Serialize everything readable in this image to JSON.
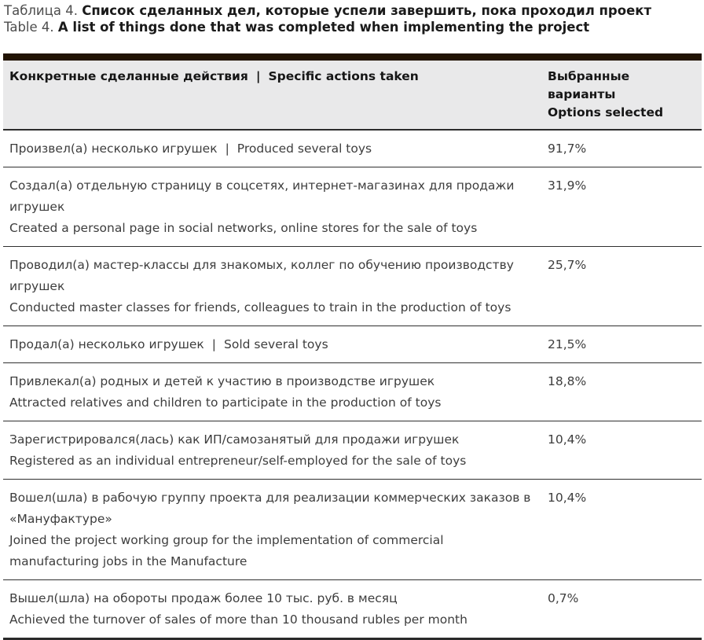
{
  "title": {
    "ru_prefix": "Таблица 4.",
    "ru_main": "Список сделанных дел, которые успели завершить, пока проходил проект",
    "en_prefix": "Table 4.",
    "en_main": "A list of things done that was completed when implementing the project"
  },
  "table": {
    "header": {
      "actions_ru": "Конкретные сделанные действия",
      "separator": "|",
      "actions_en": "Specific actions taken",
      "options_ru": "Выбранные варианты",
      "options_en": "Options selected"
    },
    "rows": [
      {
        "ru": "Произвел(а) несколько игрушек",
        "en": "Produced several toys",
        "joined": true,
        "value": "91,7%"
      },
      {
        "ru": "Создал(а) отдельную страницу в соцсетях, интернет-магазинах для продажи игрушек",
        "en": "Created a personal page in social networks, online stores for the sale of toys",
        "joined": false,
        "value": "31,9%"
      },
      {
        "ru": "Проводил(а) мастер-классы для знакомых, коллег по обучению производству игрушек",
        "en": "Conducted master classes for friends, colleagues to train in the production of toys",
        "joined": false,
        "value": "25,7%"
      },
      {
        "ru": "Продал(а) несколько игрушек",
        "en": "Sold several toys",
        "joined": true,
        "value": "21,5%"
      },
      {
        "ru": "Привлекал(а) родных и детей к участию в производстве игрушек",
        "en": "Attracted relatives and children to participate in the production of toys",
        "joined": false,
        "value": "18,8%"
      },
      {
        "ru": "Зарегистрировался(лась) как ИП/самозанятый для продажи игрушек",
        "en": "Registered as an individual entrepreneur/self-employed for the sale of toys",
        "joined": false,
        "value": "10,4%"
      },
      {
        "ru": "Вошел(шла) в рабочую группу проекта для реализации коммерческих заказов в «Мануфактуре»",
        "en": "Joined the project working group for the implementation of commercial manufacturing jobs in the Manufacture",
        "joined": false,
        "value": "10,4%"
      },
      {
        "ru": "Вышел(шла) на обороты продаж более 10 тыс. руб. в месяц",
        "en": "Achieved the turnover of sales of more than 10 thousand rubles per month",
        "joined": false,
        "value": "0,7%"
      }
    ]
  },
  "colors": {
    "top_bar": "#211303",
    "header_bg": "#e9e9ea",
    "separator": "#303030",
    "body_text": "#3d3d3d",
    "bold_text": "#161616",
    "caption_prefix": "#4d4d4d"
  }
}
